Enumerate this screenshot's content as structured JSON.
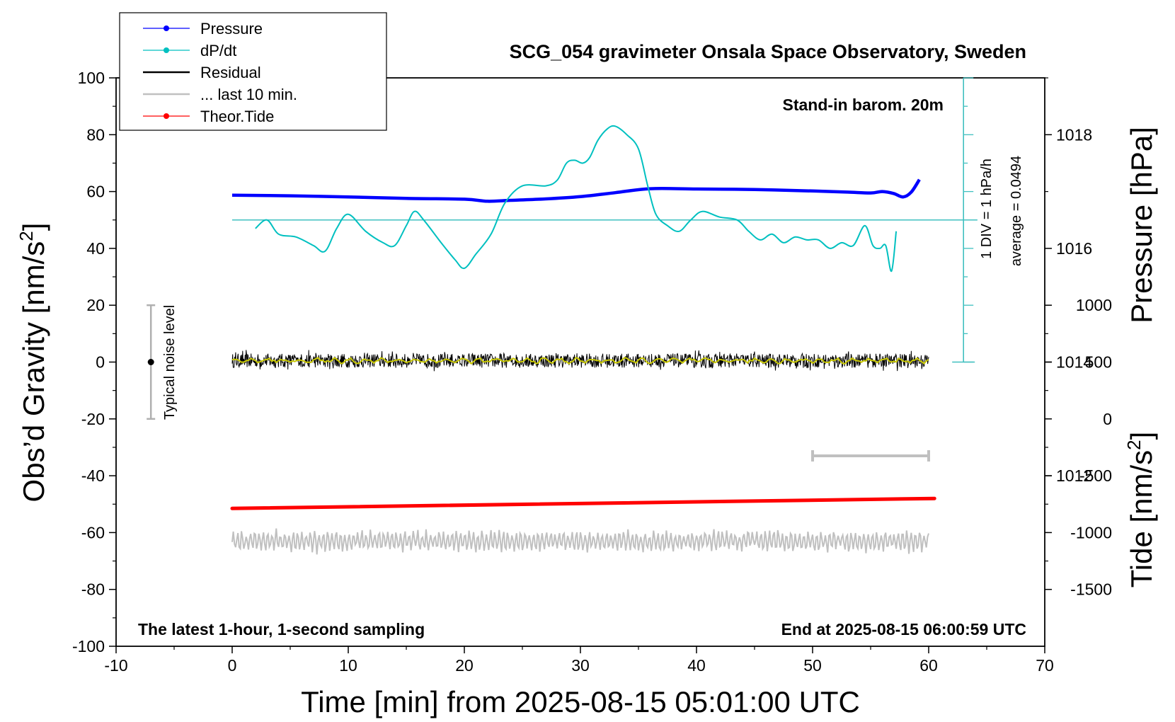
{
  "chart_data": {
    "type": "line",
    "title": "SCG_054 gravimeter Onsala Space Observatory, Sweden",
    "xlabel": "Time [min] from 2025-08-15 05:01:00 UTC",
    "ylabel_left_base": "Obs’d Gravity [nm/s",
    "ylabel_right_pressure": "Pressure [hPa]",
    "ylabel_right_tide_base": "Tide [nm/s",
    "unit_superscript": "2",
    "unit_close": "]",
    "xlim": [
      -10,
      70
    ],
    "xticks": [
      "-10",
      "0",
      "10",
      "20",
      "30",
      "40",
      "50",
      "60",
      "70"
    ],
    "ylim_left": [
      -100,
      100
    ],
    "yticks_left": [
      "-100",
      "-80",
      "-60",
      "-40",
      "-20",
      "0",
      "20",
      "40",
      "60",
      "80",
      "100"
    ],
    "pressure_ticks": [
      "1012",
      "1014",
      "1016",
      "1018"
    ],
    "tide_ticks": [
      "-1500",
      "-1000",
      "-500",
      "0",
      "500",
      "1000"
    ],
    "legend": [
      {
        "label": "Pressure",
        "color": "#0000ff"
      },
      {
        "label": "dP/dt",
        "color": "#00c0c0"
      },
      {
        "label": "Residual",
        "color": "#000000"
      },
      {
        "label": "... last 10 min.",
        "color": "#c0c0c0"
      },
      {
        "label": "Theor.Tide",
        "color": "#ff0000"
      }
    ],
    "annotations": {
      "stand_in": "Stand-in barom. 20m",
      "div": "1 DIV = 1 hPa/h",
      "average": "average = 0.0494",
      "noise": "Typical noise level",
      "latest": "The latest 1-hour, 1-second sampling",
      "end": "End at 2025-08-15 06:00:59 UTC"
    },
    "pressure_series": {
      "name": "Pressure",
      "color": "#0000ff",
      "x": [
        0,
        5,
        10,
        15,
        20,
        22,
        24,
        27,
        30,
        33,
        36,
        40,
        45,
        50,
        53,
        55,
        56,
        57,
        57.8,
        58.5,
        59.2
      ],
      "y": [
        58.7,
        58.5,
        58.1,
        57.6,
        57.3,
        56.6,
        56.9,
        57.4,
        58.2,
        59.6,
        61.0,
        60.9,
        60.7,
        60.2,
        59.8,
        59.5,
        60.0,
        59.3,
        58.1,
        59.8,
        64.2
      ]
    },
    "dpdt_series": {
      "name": "dP/dt",
      "color": "#00c0c0",
      "x": [
        2,
        3,
        4,
        5.5,
        7,
        8,
        9,
        10,
        11.5,
        13,
        14,
        15,
        15.7,
        16.5,
        18,
        19.2,
        20,
        21,
        22.3,
        23.5,
        25,
        27,
        28,
        28.8,
        29.5,
        30.2,
        30.8,
        31.5,
        32.3,
        33,
        34,
        35,
        35.8,
        36.5,
        37.5,
        38.5,
        39.5,
        40.5,
        42,
        43.5,
        44.5,
        45.5,
        46.5,
        47.5,
        48.5,
        49.5,
        50.5,
        51.5,
        52.5,
        53.5,
        54.5,
        55.2,
        55.8,
        56.3,
        56.8,
        57.2
      ],
      "y": [
        47,
        50,
        45,
        44,
        41,
        39,
        47,
        52,
        46,
        42,
        41,
        48,
        53,
        50,
        42,
        36,
        33,
        38,
        45,
        56,
        62,
        62,
        64,
        70,
        71,
        70,
        72,
        78,
        82,
        83,
        80,
        75,
        62,
        52,
        48,
        46,
        50,
        53,
        51,
        50,
        46,
        43,
        45,
        42,
        44,
        43,
        43,
        40,
        42,
        41,
        48,
        41,
        40,
        41,
        32,
        46
      ]
    },
    "tide_series": {
      "name": "Theor.Tide",
      "color": "#ff0000",
      "x": [
        0,
        60.5
      ],
      "y": [
        -51.5,
        -48.0
      ]
    },
    "residual_series": {
      "name": "Residual",
      "color": "#000000",
      "x_range": [
        0,
        60
      ],
      "center": 0.5,
      "amplitude": 2.5
    },
    "last10_series": {
      "name": "... last 10 min.",
      "color": "#c0c0c0",
      "x_range": [
        0,
        60
      ],
      "center": -63,
      "amplitude": 3.5
    },
    "reference_line": {
      "y": 50,
      "color": "#40c0c0",
      "x_range": [
        0,
        64.2
      ]
    },
    "div_axis": {
      "x": 63,
      "y_range": [
        0,
        100
      ],
      "color": "#40c0c0"
    },
    "noise_bar": {
      "x": -7,
      "y_range": [
        -20,
        20
      ]
    },
    "scale_bar": {
      "x_range": [
        50,
        60
      ],
      "y": -33
    }
  }
}
